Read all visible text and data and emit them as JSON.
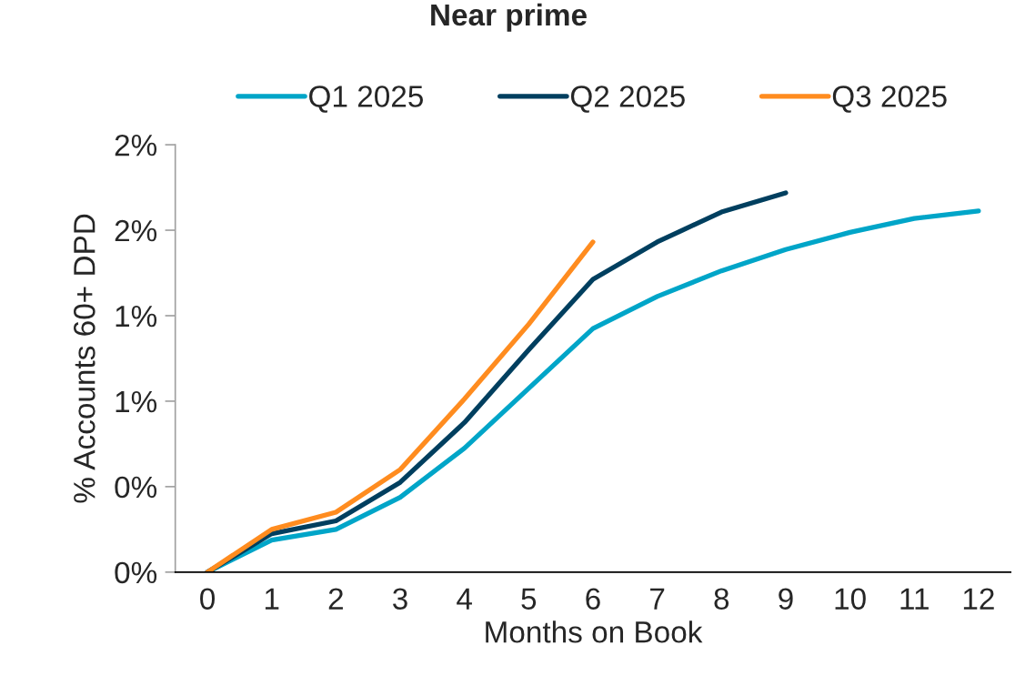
{
  "chart_data": {
    "type": "line",
    "title": "Near prime",
    "xlabel": "Months on Book",
    "ylabel": "% Accounts 60+ DPD",
    "categories": [
      "0",
      "1",
      "2",
      "3",
      "4",
      "5",
      "6",
      "7",
      "8",
      "9",
      "10",
      "11",
      "12"
    ],
    "series": [
      {
        "name": "Q1 2025",
        "color": "#00a5c8",
        "values": [
          0,
          0.15,
          0.2,
          0.35,
          0.58,
          0.86,
          1.14,
          1.29,
          1.41,
          1.51,
          1.59,
          1.655,
          1.69
        ]
      },
      {
        "name": "Q2 2025",
        "color": "#003f5f",
        "values": [
          0,
          0.18,
          0.24,
          0.42,
          0.7,
          1.04,
          1.37,
          1.545,
          1.685,
          1.775,
          null,
          null,
          null
        ]
      },
      {
        "name": "Q3 2025",
        "color": "#ff8c1f",
        "values": [
          0,
          0.2,
          0.28,
          0.48,
          0.81,
          1.16,
          1.545,
          null,
          null,
          null,
          null,
          null,
          null
        ]
      }
    ],
    "ylim": [
      0,
      2.0
    ],
    "yticks": [
      {
        "value": 0,
        "label": "0%"
      },
      {
        "value": 0.4,
        "label": "0%"
      },
      {
        "value": 0.8,
        "label": "1%"
      },
      {
        "value": 1.2,
        "label": "1%"
      },
      {
        "value": 1.6,
        "label": "2%"
      },
      {
        "value": 2.0,
        "label": "2%"
      }
    ],
    "grid": false,
    "legend": "top",
    "marker": "none",
    "line_style": "solid"
  }
}
